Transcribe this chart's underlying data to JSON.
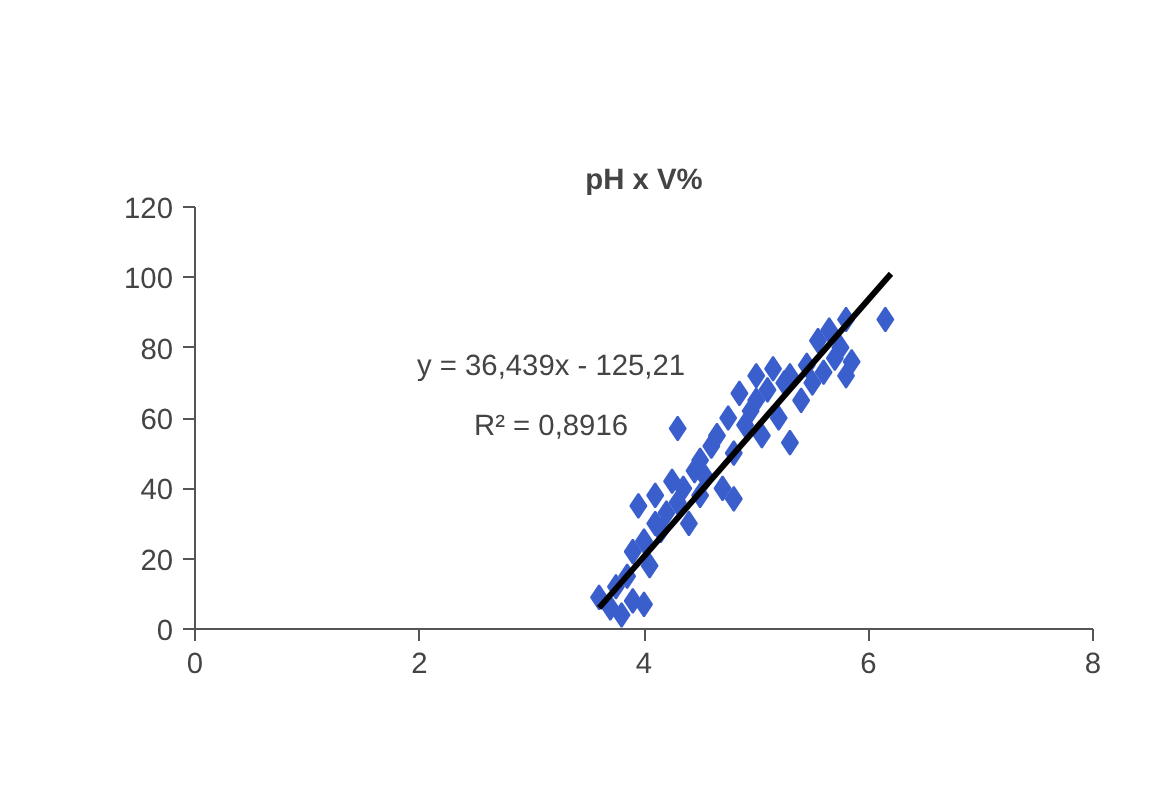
{
  "chart_data": {
    "type": "scatter",
    "title": "pH x V%",
    "xlim": [
      0,
      8
    ],
    "xticks": [
      0,
      2,
      4,
      6,
      8
    ],
    "ylim": [
      0,
      120
    ],
    "yticks": [
      0,
      20,
      40,
      60,
      80,
      100,
      120
    ],
    "grid": false,
    "marker": "diamond",
    "annotations": [
      "y = 36,439x - 125,21",
      "R² = 0,8916"
    ],
    "series": [
      {
        "color": "#3a5fcd",
        "x": [
          3.6,
          3.7,
          3.75,
          3.8,
          3.9,
          4.0,
          3.85,
          3.9,
          3.95,
          4.0,
          4.05,
          4.1,
          4.1,
          4.15,
          4.2,
          4.25,
          4.3,
          4.3,
          4.35,
          4.4,
          4.45,
          4.5,
          4.5,
          4.55,
          4.6,
          4.65,
          4.7,
          4.75,
          4.8,
          4.8,
          4.85,
          4.9,
          4.95,
          5.0,
          5.0,
          5.05,
          5.1,
          5.15,
          5.2,
          5.25,
          5.3,
          5.3,
          5.4,
          5.45,
          5.5,
          5.55,
          5.6,
          5.65,
          5.7,
          5.75,
          5.8,
          5.8,
          5.85,
          6.15
        ],
        "values": [
          9,
          6,
          12,
          4,
          8,
          7,
          15,
          22,
          35,
          25,
          18,
          30,
          38,
          28,
          33,
          42,
          57,
          36,
          40,
          30,
          45,
          48,
          38,
          43,
          52,
          55,
          40,
          60,
          37,
          50,
          67,
          58,
          62,
          72,
          65,
          55,
          68,
          74,
          60,
          70,
          53,
          72,
          65,
          75,
          70,
          82,
          73,
          85,
          77,
          80,
          88,
          72,
          76,
          88
        ]
      },
      {
        "type": "line",
        "color": "#000000",
        "x": [
          3.6,
          6.2
        ],
        "values": [
          6,
          101
        ],
        "marker": "none",
        "line_style": "solid"
      }
    ]
  }
}
